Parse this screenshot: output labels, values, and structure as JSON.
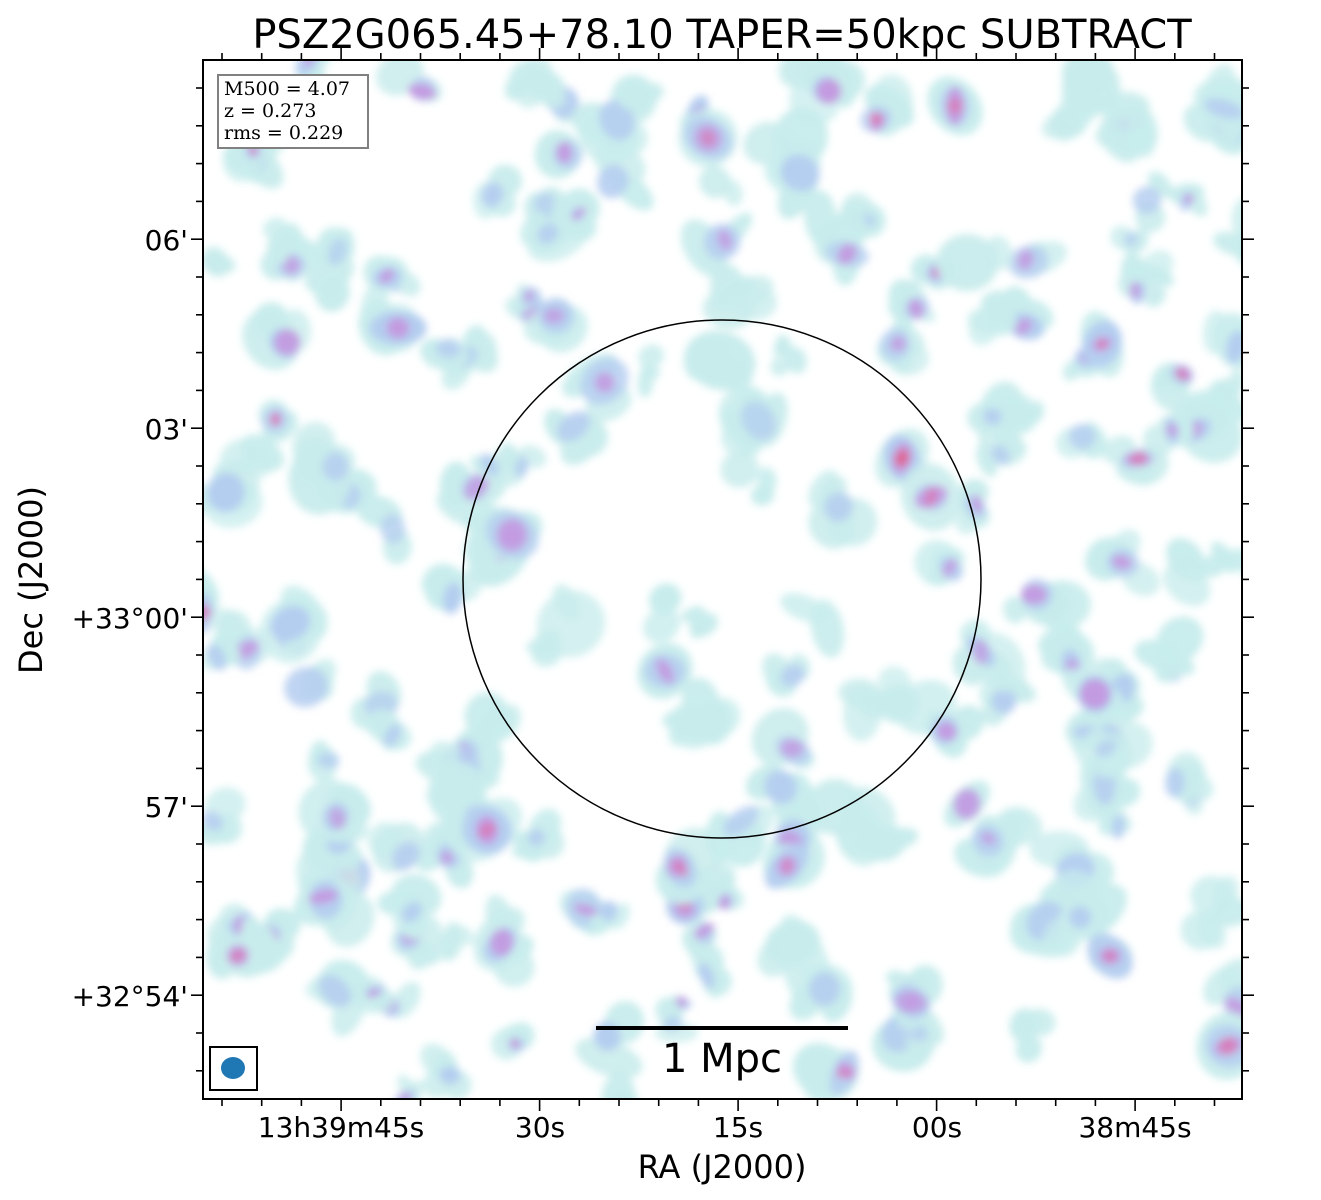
{
  "chart_data": {
    "type": "heatmap",
    "title": "PSZ2G065.45+78.10 TAPER=50kpc SUBTRACT",
    "xlabel": "RA (J2000)",
    "ylabel": "Dec (J2000)",
    "x_ticks": [
      "13h39m45s",
      "30s",
      "15s",
      "00s",
      "38m45s"
    ],
    "y_ticks": [
      "06'",
      "03'",
      "+33°00'",
      "57'",
      "+32°54'"
    ],
    "info": [
      "M500 = 4.07",
      "z = 0.273",
      "rms = 0.229"
    ],
    "scale_bar_label": "1 Mpc",
    "colormap": [
      "#c8ecec",
      "#b4cdf0",
      "#c39ae0",
      "#d87cb8",
      "#e0608c"
    ],
    "beam_color": "#1f77b4",
    "circle": "centered reference circle",
    "grid": false
  }
}
